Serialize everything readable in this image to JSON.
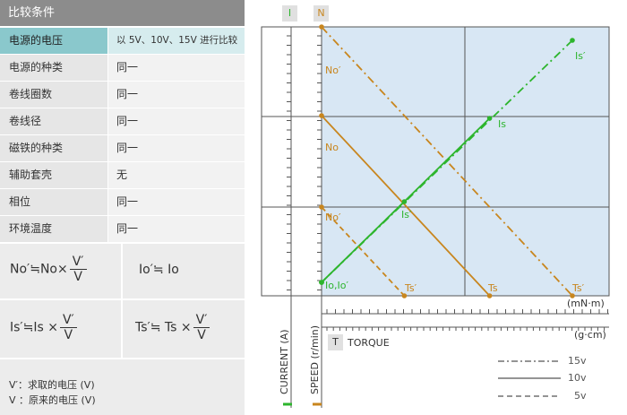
{
  "table": {
    "title": "比较条件",
    "rows": [
      {
        "key": "电源的电压",
        "value": "以  5V、10V、15V  进行比较",
        "highlight": true
      },
      {
        "key": "电源的种类",
        "value": "同一"
      },
      {
        "key": "卷线圈数",
        "value": "同一"
      },
      {
        "key": "卷线径",
        "value": "同一"
      },
      {
        "key": "磁铁的种类",
        "value": "同一"
      },
      {
        "key": "辅助套壳",
        "value": "无"
      },
      {
        "key": "相位",
        "value": "同一"
      },
      {
        "key": "环境温度",
        "value": "同一"
      }
    ]
  },
  "formulas": {
    "f1_left": "No′≒No×",
    "f1_num": "V′",
    "f1_den": "V",
    "f2": "Io′≒ Io",
    "f3_left": "Is′≒Is  ×",
    "f3_num": "V′",
    "f3_den": "V",
    "f4_left": "Ts′≒ Ts ×",
    "f4_num": "V′",
    "f4_den": "V"
  },
  "notes": {
    "n1": "V′：求取的电压  (V)",
    "n2": "V ：原来的电压  (V)"
  },
  "chart_data": {
    "type": "line",
    "axes": {
      "current_tag": "I",
      "speed_tag": "N",
      "current_label": "CURRENT (A)",
      "speed_label": "SPEED (r/min)",
      "torque_tag": "T",
      "torque_label": "TORQUE",
      "unit_mn": "(mN·m)",
      "unit_gcm": "(g·cm)"
    },
    "colors": {
      "current": "#2db52d",
      "speed": "#c8861e",
      "background": "#d8e7f4",
      "grid": "#555555"
    },
    "series": [
      {
        "name": "15v",
        "style": "dashdot",
        "speed": {
          "x": [
            0,
            10
          ],
          "y": [
            10,
            0
          ]
        },
        "current": {
          "x": [
            0,
            10
          ],
          "y": [
            0.5,
            9.5
          ]
        }
      },
      {
        "name": "10v",
        "style": "solid",
        "speed": {
          "x": [
            0,
            6.7
          ],
          "y": [
            6.7,
            0
          ]
        },
        "current": {
          "x": [
            0,
            6.7
          ],
          "y": [
            0.5,
            6.6
          ]
        }
      },
      {
        "name": "5v",
        "style": "dashed",
        "speed": {
          "x": [
            0,
            3.3
          ],
          "y": [
            3.3,
            0
          ]
        },
        "current": {
          "x": [
            0,
            3.3
          ],
          "y": [
            0.5,
            3.5
          ]
        }
      }
    ],
    "labels": [
      {
        "text": "No′",
        "color": "speed"
      },
      {
        "text": "No",
        "color": "speed"
      },
      {
        "text": "No′",
        "color": "speed"
      },
      {
        "text": "Ts′",
        "color": "speed"
      },
      {
        "text": "Ts",
        "color": "speed"
      },
      {
        "text": "Ts′",
        "color": "speed"
      },
      {
        "text": "Is′",
        "color": "current"
      },
      {
        "text": "Is",
        "color": "current"
      },
      {
        "text": "Is′",
        "color": "current"
      },
      {
        "text": "Io,Io′",
        "color": "current"
      }
    ],
    "legend": [
      {
        "name": "15v",
        "style": "dashdot"
      },
      {
        "name": "10v",
        "style": "solid"
      },
      {
        "name": "5v",
        "style": "dashed"
      }
    ]
  }
}
